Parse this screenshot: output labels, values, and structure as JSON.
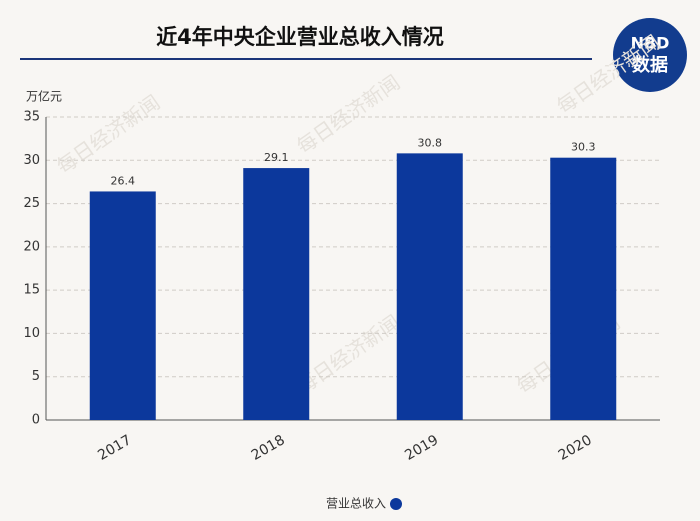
{
  "chart_data": {
    "type": "bar",
    "title": "近4年中央企业营业总收入情况",
    "y_label": "万亿元",
    "categories": [
      "2017",
      "2018",
      "2019",
      "2020"
    ],
    "series": [
      {
        "name": "营业总收入",
        "color": "#0c389c",
        "values": [
          26.4,
          29.1,
          30.8,
          30.3
        ]
      }
    ],
    "ylim": [
      0,
      35
    ],
    "yticks": [
      0,
      5,
      10,
      15,
      20,
      25,
      30,
      35
    ],
    "grid": true,
    "legend": "bottom"
  },
  "logo": {
    "top": "NBD",
    "bottom": "数据"
  },
  "watermark": "每日经济新闻"
}
